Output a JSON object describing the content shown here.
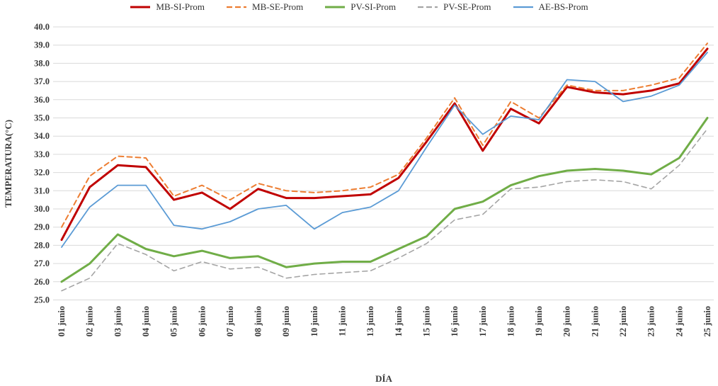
{
  "chart_data": {
    "type": "line",
    "title": "",
    "xlabel": "DÍA",
    "ylabel": "TEMPERATURA(°C)",
    "ylim": [
      25.0,
      40.0
    ],
    "ytick_step": 1.0,
    "grid": true,
    "legend_position": "top-center",
    "categories": [
      "01 junio",
      "02 junio",
      "03 junio",
      "04 junio",
      "05 junio",
      "06 junio",
      "07 junio",
      "08 junio",
      "09 junio",
      "10 junio",
      "11 junio",
      "13 junio",
      "14 junio",
      "15 junio",
      "16 junio",
      "17 junio",
      "18 junio",
      "19 junio",
      "20 junio",
      "21 junio",
      "22 junio",
      "23 junio",
      "24 junio",
      "25 junio"
    ],
    "series": [
      {
        "name": "MB-SI-Prom",
        "color": "#C00000",
        "style": "solid",
        "width": 3,
        "values": [
          28.3,
          31.2,
          32.4,
          32.3,
          30.5,
          30.9,
          30.0,
          31.1,
          30.6,
          30.6,
          30.7,
          30.8,
          31.7,
          33.7,
          35.8,
          33.2,
          35.5,
          34.7,
          36.7,
          36.4,
          36.3,
          36.5,
          36.9,
          38.8
        ]
      },
      {
        "name": "MB-SE-Prom",
        "color": "#ED7D31",
        "style": "dashed",
        "width": 2,
        "values": [
          29.0,
          31.8,
          32.9,
          32.8,
          30.7,
          31.3,
          30.5,
          31.4,
          31.0,
          30.9,
          31.0,
          31.2,
          31.9,
          33.9,
          36.1,
          33.5,
          35.9,
          35.0,
          36.8,
          36.5,
          36.5,
          36.8,
          37.2,
          39.1
        ]
      },
      {
        "name": "PV-SI-Prom",
        "color": "#70AD47",
        "style": "solid",
        "width": 3,
        "values": [
          26.0,
          27.0,
          28.6,
          27.8,
          27.4,
          27.7,
          27.3,
          27.4,
          26.8,
          27.0,
          27.1,
          27.1,
          27.8,
          28.5,
          30.0,
          30.4,
          31.3,
          31.8,
          32.1,
          32.2,
          32.1,
          31.9,
          32.8,
          35.0
        ]
      },
      {
        "name": "PV-SE-Prom",
        "color": "#A5A5A5",
        "style": "dashed",
        "width": 1.6,
        "values": [
          25.5,
          26.2,
          28.1,
          27.5,
          26.6,
          27.1,
          26.7,
          26.8,
          26.2,
          26.4,
          26.5,
          26.6,
          27.3,
          28.1,
          29.4,
          29.7,
          31.1,
          31.2,
          31.5,
          31.6,
          31.5,
          31.1,
          32.4,
          34.4
        ]
      },
      {
        "name": "AE-BS-Prom",
        "color": "#5B9BD5",
        "style": "solid",
        "width": 1.8,
        "values": [
          27.9,
          30.1,
          31.3,
          31.3,
          29.1,
          28.9,
          29.3,
          30.0,
          30.2,
          28.9,
          29.8,
          30.1,
          31.0,
          33.4,
          35.7,
          34.1,
          35.1,
          34.9,
          37.1,
          37.0,
          35.9,
          36.2,
          36.8,
          38.6
        ]
      }
    ]
  },
  "colors": {
    "gridline": "#D9D9D9",
    "axis_text": "#3b3b3b",
    "background": "#FFFFFF"
  }
}
